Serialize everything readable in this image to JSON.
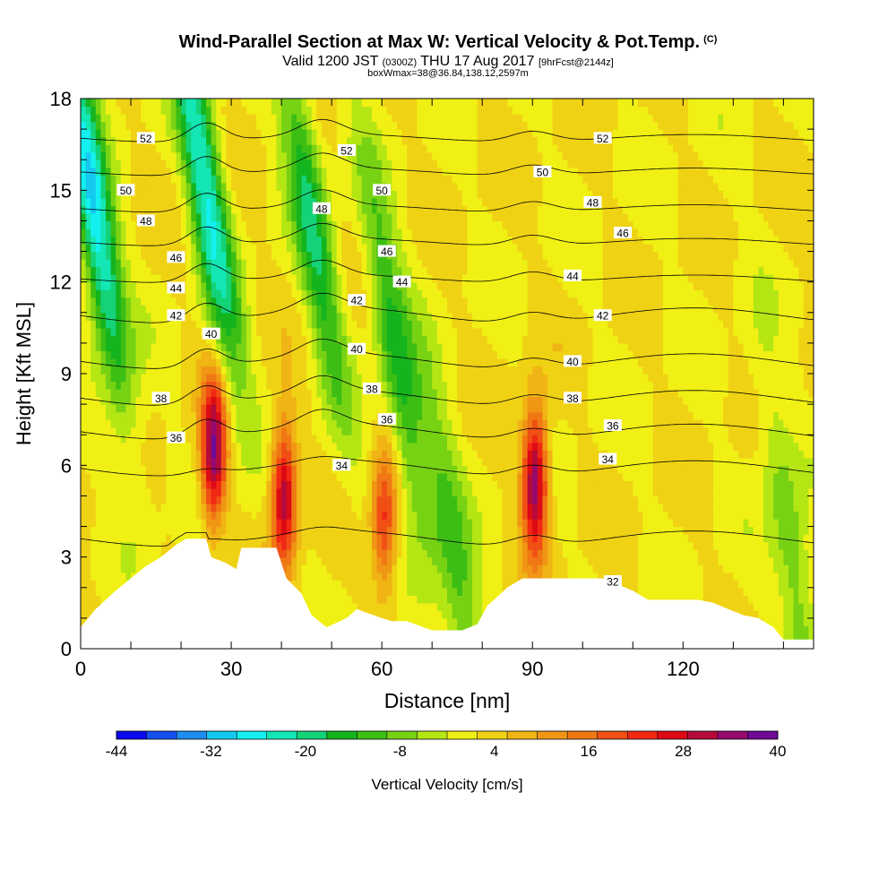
{
  "header": {
    "title": "Wind-Parallel Section at Max W: Vertical Velocity & Pot.Temp.",
    "copyright": "(C)",
    "valid_prefix": "Valid 1200 JST",
    "valid_utc": "(0300Z)",
    "valid_date": "THU 17 Aug 2017",
    "forecast_tag": "[9hrFcst@2144z]",
    "box_info": "boxWmax=38@36.84,138.12,2597m"
  },
  "chart_data": {
    "type": "heatmap",
    "xlabel": "Distance [nm]",
    "ylabel": "Height [Kft MSL]",
    "xlim": [
      0,
      146
    ],
    "ylim": [
      0,
      18
    ],
    "x_ticks": [
      0,
      30,
      60,
      90,
      120
    ],
    "y_ticks": [
      0,
      3,
      6,
      9,
      12,
      15,
      18
    ],
    "colorbar": {
      "label": "Vertical Velocity [cm/s]",
      "range": [
        -44,
        40
      ],
      "step": 4,
      "tick_labels": [
        -44,
        -32,
        -20,
        -8,
        4,
        16,
        28,
        40
      ],
      "colors": [
        "#0a0af0",
        "#1450f0",
        "#1e8cf0",
        "#14c8f0",
        "#14f0f0",
        "#14e6b4",
        "#14d278",
        "#14b41e",
        "#3cbe14",
        "#78d214",
        "#b4e614",
        "#f0f014",
        "#f0d214",
        "#f0b414",
        "#f09614",
        "#f07814",
        "#f05014",
        "#f02814",
        "#dc0a14",
        "#b40a3c",
        "#960a6e",
        "#6e0a96"
      ]
    },
    "contour_variable": "Potential Temperature (C)",
    "contour_levels": [
      32,
      34,
      36,
      38,
      40,
      42,
      44,
      46,
      48,
      50,
      52
    ],
    "contour_base_heights": {
      "32": 3.6,
      "34": 5.9,
      "36": 7.1,
      "38": 8.2,
      "40": 9.4,
      "42": 10.9,
      "44": 12.1,
      "46": 13.3,
      "48": 14.4,
      "50": 15.6,
      "52": 16.7
    },
    "contour_labels": [
      {
        "text": "52",
        "x": 13,
        "y": 16.7
      },
      {
        "text": "52",
        "x": 53,
        "y": 16.3
      },
      {
        "text": "52",
        "x": 104,
        "y": 16.7
      },
      {
        "text": "50",
        "x": 9,
        "y": 15.0
      },
      {
        "text": "50",
        "x": 60,
        "y": 15.0
      },
      {
        "text": "50",
        "x": 92,
        "y": 15.6
      },
      {
        "text": "48",
        "x": 13,
        "y": 14.0
      },
      {
        "text": "48",
        "x": 48,
        "y": 14.4
      },
      {
        "text": "48",
        "x": 102,
        "y": 14.6
      },
      {
        "text": "46",
        "x": 19,
        "y": 12.8
      },
      {
        "text": "46",
        "x": 61,
        "y": 13.0
      },
      {
        "text": "46",
        "x": 108,
        "y": 13.6
      },
      {
        "text": "44",
        "x": 19,
        "y": 11.8
      },
      {
        "text": "44",
        "x": 64,
        "y": 12.0
      },
      {
        "text": "44",
        "x": 98,
        "y": 12.2
      },
      {
        "text": "42",
        "x": 19,
        "y": 10.9
      },
      {
        "text": "42",
        "x": 55,
        "y": 11.4
      },
      {
        "text": "42",
        "x": 104,
        "y": 10.9
      },
      {
        "text": "40",
        "x": 26,
        "y": 10.3
      },
      {
        "text": "40",
        "x": 55,
        "y": 9.8
      },
      {
        "text": "40",
        "x": 98,
        "y": 9.4
      },
      {
        "text": "38",
        "x": 16,
        "y": 8.2
      },
      {
        "text": "38",
        "x": 58,
        "y": 8.5
      },
      {
        "text": "38",
        "x": 98,
        "y": 8.2
      },
      {
        "text": "36",
        "x": 19,
        "y": 6.9
      },
      {
        "text": "36",
        "x": 61,
        "y": 7.5
      },
      {
        "text": "36",
        "x": 106,
        "y": 7.3
      },
      {
        "text": "34",
        "x": 52,
        "y": 6.0
      },
      {
        "text": "34",
        "x": 105,
        "y": 6.2
      },
      {
        "text": "32",
        "x": 106,
        "y": 2.2
      }
    ],
    "w_features": [
      {
        "x": 26.5,
        "z": 6.5,
        "w": 40
      },
      {
        "x": 40.5,
        "z": 5.0,
        "w": 36
      },
      {
        "x": 60.5,
        "z": 4.2,
        "w": 26
      },
      {
        "x": 90.5,
        "z": 5.5,
        "w": 40
      },
      {
        "x": 2.5,
        "z": 14.5,
        "w": -28
      },
      {
        "x": 25.0,
        "z": 15.0,
        "w": -24
      },
      {
        "x": 46.0,
        "z": 14.0,
        "w": -16
      },
      {
        "x": 63.0,
        "z": 9.5,
        "w": -14
      },
      {
        "x": 75.0,
        "z": 2.5,
        "w": -10
      },
      {
        "x": 142.0,
        "z": 2.8,
        "w": -8
      }
    ],
    "terrain_profile": [
      [
        0,
        0.7
      ],
      [
        3,
        1.3
      ],
      [
        7,
        1.9
      ],
      [
        10,
        2.3
      ],
      [
        13,
        2.7
      ],
      [
        16,
        3.0
      ],
      [
        19,
        3.4
      ],
      [
        21,
        3.6
      ],
      [
        25,
        3.6
      ],
      [
        26,
        3.0
      ],
      [
        29,
        2.8
      ],
      [
        31,
        2.6
      ],
      [
        32,
        3.3
      ],
      [
        39,
        3.3
      ],
      [
        41,
        2.3
      ],
      [
        44,
        1.8
      ],
      [
        46,
        1.1
      ],
      [
        49,
        0.7
      ],
      [
        53,
        1.0
      ],
      [
        55,
        1.3
      ],
      [
        60,
        1.0
      ],
      [
        62,
        0.9
      ],
      [
        65,
        0.9
      ],
      [
        70,
        0.6
      ],
      [
        76,
        0.6
      ],
      [
        79,
        0.8
      ],
      [
        81,
        1.4
      ],
      [
        83,
        1.7
      ],
      [
        85,
        2.0
      ],
      [
        88,
        2.3
      ],
      [
        104,
        2.3
      ],
      [
        110,
        1.9
      ],
      [
        113,
        1.6
      ],
      [
        123,
        1.6
      ],
      [
        126,
        1.5
      ],
      [
        129,
        1.3
      ],
      [
        132,
        1.1
      ],
      [
        135,
        1.0
      ],
      [
        138,
        0.7
      ],
      [
        140,
        0.3
      ],
      [
        146,
        0.3
      ]
    ]
  }
}
